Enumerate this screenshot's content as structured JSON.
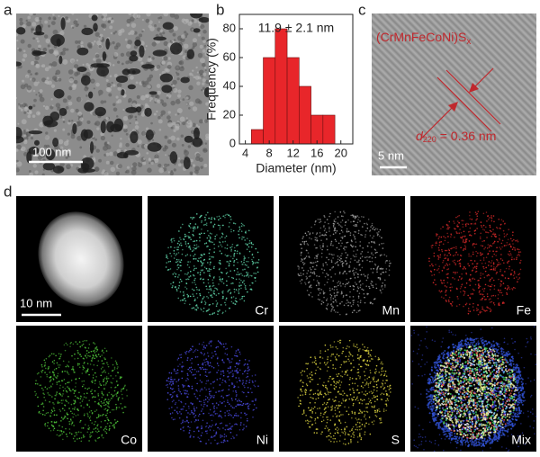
{
  "panels": {
    "a": {
      "label": "a",
      "scale_bar": "100 nm"
    },
    "b": {
      "label": "b"
    },
    "c": {
      "label": "c",
      "formula_main": "(CrMnFeCoNi)S",
      "formula_sub": "x",
      "spacing_symbol": "d",
      "spacing_sub": "220",
      "spacing_value": " = 0.36 nm",
      "scale_bar": "5 nm"
    },
    "d": {
      "label": "d",
      "scale_bar": "10 nm",
      "maps": [
        "Cr",
        "Mn",
        "Fe",
        "Co",
        "Ni",
        "S",
        "Mix"
      ]
    }
  },
  "chart_data": {
    "type": "histogram",
    "title": "11.9 ± 2.1 nm",
    "xlabel": "Diameter (nm)",
    "ylabel": "Frequency (%)",
    "bins": [
      5,
      7,
      9,
      11,
      13,
      15,
      17,
      19
    ],
    "values": [
      10,
      60,
      80,
      60,
      40,
      20,
      20
    ],
    "color": "#e8262a",
    "xlim": [
      3,
      22
    ],
    "xticks": [
      4,
      8,
      12,
      16,
      20
    ],
    "ylim": [
      0,
      90
    ],
    "yticks": [
      0,
      20,
      40,
      60,
      80
    ]
  }
}
